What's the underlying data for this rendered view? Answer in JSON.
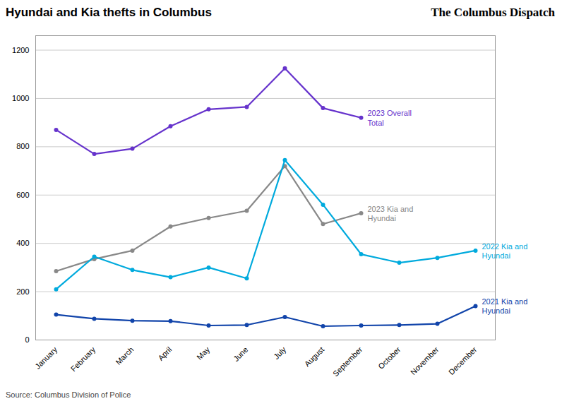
{
  "chart_data": {
    "type": "line",
    "title": "Hyundai and Kia thefts in Columbus",
    "caption": "Source: Columbus Division of Police",
    "annotations": [
      {
        "text": "The Columbus Dispatch"
      }
    ],
    "categories": [
      "January",
      "February",
      "March",
      "April",
      "May",
      "June",
      "July",
      "August",
      "September",
      "October",
      "November",
      "December"
    ],
    "series": [
      {
        "name": "2023 Overall\nTotal",
        "color": "#6633cc",
        "marker": "circle",
        "values": [
          870,
          770,
          792,
          885,
          955,
          965,
          1125,
          960,
          920,
          null,
          null,
          null
        ]
      },
      {
        "name": "2023 Kia and\nHyundai",
        "color": "#888888",
        "marker": "circle",
        "values": [
          285,
          335,
          370,
          470,
          505,
          535,
          720,
          480,
          525,
          null,
          null,
          null
        ]
      },
      {
        "name": "2022 Kia and\nHyundai",
        "color": "#00aadd",
        "marker": "circle",
        "values": [
          210,
          345,
          290,
          260,
          300,
          255,
          745,
          560,
          355,
          320,
          340,
          370
        ]
      },
      {
        "name": "2021 Kia and\nHyundai",
        "color": "#1144aa",
        "marker": "circle",
        "values": [
          105,
          88,
          80,
          78,
          60,
          62,
          95,
          57,
          60,
          62,
          67,
          140
        ]
      }
    ],
    "ylim": [
      0,
      1260
    ],
    "yticks": [
      0,
      200,
      400,
      600,
      800,
      1000,
      1200
    ],
    "grid": true
  }
}
